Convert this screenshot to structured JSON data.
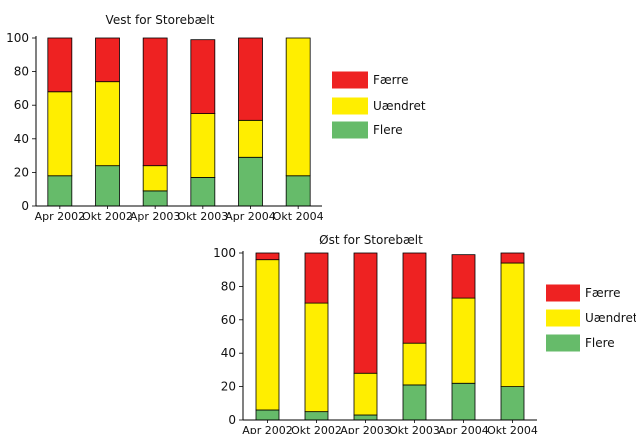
{
  "chart_data": [
    {
      "type": "bar",
      "stacked": true,
      "title": "Vest for Storebælt",
      "categories": [
        "Apr 2002",
        "Okt 2002",
        "Apr 2003",
        "Okt 2003",
        "Apr 2004",
        "Okt 2004"
      ],
      "series": [
        {
          "name": "Flere",
          "color": "#66bb6a",
          "values": [
            18,
            24,
            9,
            17,
            29,
            18
          ]
        },
        {
          "name": "Uændret",
          "color": "#ffee00",
          "values": [
            50,
            50,
            15,
            38,
            22,
            82
          ]
        },
        {
          "name": "Færre",
          "color": "#ee2222",
          "values": [
            32,
            26,
            76,
            44,
            49,
            0
          ]
        }
      ],
      "ylim": [
        0,
        100
      ],
      "yticks": [
        0,
        20,
        40,
        60,
        80,
        100
      ],
      "legend": "right"
    },
    {
      "type": "bar",
      "stacked": true,
      "title": "Øst for Storebælt",
      "categories": [
        "Apr 2002",
        "Okt 2002",
        "Apr 2003",
        "Okt 2003",
        "Apr 2004",
        "Okt 2004"
      ],
      "series": [
        {
          "name": "Flere",
          "color": "#66bb6a",
          "values": [
            6,
            5,
            3,
            21,
            22,
            20
          ]
        },
        {
          "name": "Uændret",
          "color": "#ffee00",
          "values": [
            90,
            65,
            25,
            25,
            51,
            74
          ]
        },
        {
          "name": "Færre",
          "color": "#ee2222",
          "values": [
            4,
            30,
            72,
            54,
            26,
            6
          ]
        }
      ],
      "ylim": [
        0,
        100
      ],
      "yticks": [
        0,
        20,
        40,
        60,
        80,
        100
      ],
      "legend": "right"
    }
  ]
}
